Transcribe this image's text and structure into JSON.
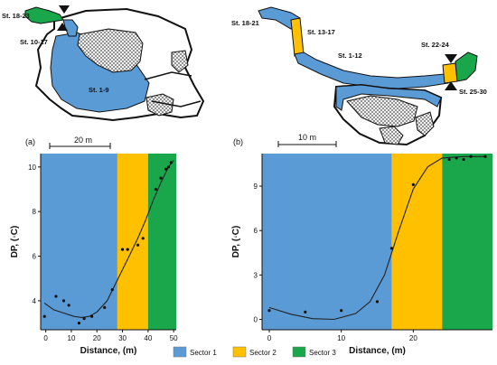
{
  "colors": {
    "sector1": "#5b9bd5",
    "sector2": "#ffc000",
    "sector3": "#1aa64a",
    "cave_outline": "#111111",
    "rock_fill": "#bfbfbf"
  },
  "map_a": {
    "panel_label": "(a)",
    "scale_label": "20 m",
    "stations": {
      "s1": "St. 18-23",
      "s2": "St. 10-17",
      "s3": "St. 1-9"
    }
  },
  "map_b": {
    "panel_label": "(b)",
    "scale_label": "10 m",
    "stations": {
      "s1": "St. 18-21",
      "s2": "St. 13-17",
      "s3": "St. 1-12",
      "s4": "St. 22-24",
      "s5": "St. 25-30"
    }
  },
  "legend": {
    "items": [
      "Sector 1",
      "Sector 2",
      "Sector 3"
    ]
  },
  "chart_data": [
    {
      "type": "scatter",
      "title": "",
      "xlabel": "Distance, (m)",
      "ylabel": "DP, (◦C)",
      "xlim": [
        -2,
        51
      ],
      "ylim": [
        2.7,
        10.6
      ],
      "xticks": [
        0,
        10,
        20,
        30,
        40,
        50
      ],
      "yticks": [
        4,
        6,
        8,
        10
      ],
      "sectors": [
        {
          "name": "Sector 1",
          "from": -2,
          "to": 28
        },
        {
          "name": "Sector 2",
          "from": 28,
          "to": 40
        },
        {
          "name": "Sector 3",
          "from": 40,
          "to": 51
        }
      ],
      "points": [
        {
          "x": -0.5,
          "y": 3.3
        },
        {
          "x": 4,
          "y": 4.2
        },
        {
          "x": 7,
          "y": 4.0
        },
        {
          "x": 9,
          "y": 3.8
        },
        {
          "x": 13,
          "y": 3.0
        },
        {
          "x": 15,
          "y": 3.2
        },
        {
          "x": 18,
          "y": 3.3
        },
        {
          "x": 23,
          "y": 3.7
        },
        {
          "x": 26,
          "y": 4.5
        },
        {
          "x": 30,
          "y": 6.3
        },
        {
          "x": 32,
          "y": 6.3
        },
        {
          "x": 36,
          "y": 6.5
        },
        {
          "x": 38,
          "y": 6.8
        },
        {
          "x": 43,
          "y": 9.0
        },
        {
          "x": 45,
          "y": 9.5
        },
        {
          "x": 47,
          "y": 9.9
        },
        {
          "x": 48,
          "y": 10.0
        },
        {
          "x": 49,
          "y": 10.2
        }
      ],
      "curve": [
        {
          "x": -0.5,
          "y": 3.9
        },
        {
          "x": 3,
          "y": 3.6
        },
        {
          "x": 7,
          "y": 3.45
        },
        {
          "x": 11,
          "y": 3.3
        },
        {
          "x": 14,
          "y": 3.25
        },
        {
          "x": 17,
          "y": 3.3
        },
        {
          "x": 20,
          "y": 3.5
        },
        {
          "x": 24,
          "y": 4.0
        },
        {
          "x": 27,
          "y": 4.7
        },
        {
          "x": 30,
          "y": 5.4
        },
        {
          "x": 33,
          "y": 6.1
        },
        {
          "x": 36,
          "y": 6.8
        },
        {
          "x": 39,
          "y": 7.6
        },
        {
          "x": 42,
          "y": 8.5
        },
        {
          "x": 45,
          "y": 9.3
        },
        {
          "x": 48,
          "y": 10.0
        },
        {
          "x": 50,
          "y": 10.3
        }
      ]
    },
    {
      "type": "scatter",
      "title": "",
      "xlabel": "Distance, (m)",
      "ylabel": "DP, (◦C)",
      "xlim": [
        -1,
        31
      ],
      "ylim": [
        -0.7,
        11.2
      ],
      "xticks": [
        0,
        10,
        20
      ],
      "yticks": [
        0,
        3,
        6,
        9
      ],
      "sectors": [
        {
          "name": "Sector 1",
          "from": -1,
          "to": 17
        },
        {
          "name": "Sector 2",
          "from": 17,
          "to": 24
        },
        {
          "name": "Sector 3",
          "from": 24,
          "to": 31
        }
      ],
      "points": [
        {
          "x": 0,
          "y": 0.6
        },
        {
          "x": 5,
          "y": 0.5
        },
        {
          "x": 10,
          "y": 0.6
        },
        {
          "x": 15,
          "y": 1.2
        },
        {
          "x": 17,
          "y": 4.8
        },
        {
          "x": 20,
          "y": 9.1
        },
        {
          "x": 25,
          "y": 10.8
        },
        {
          "x": 26,
          "y": 10.9
        },
        {
          "x": 27,
          "y": 10.8
        },
        {
          "x": 28,
          "y": 11.0
        },
        {
          "x": 30,
          "y": 11.0
        }
      ],
      "curve": [
        {
          "x": 0,
          "y": 0.8
        },
        {
          "x": 3,
          "y": 0.35
        },
        {
          "x": 6,
          "y": 0.05
        },
        {
          "x": 9,
          "y": 0.0
        },
        {
          "x": 12,
          "y": 0.4
        },
        {
          "x": 14,
          "y": 1.2
        },
        {
          "x": 16,
          "y": 3.0
        },
        {
          "x": 18,
          "y": 6.0
        },
        {
          "x": 20,
          "y": 8.8
        },
        {
          "x": 22,
          "y": 10.3
        },
        {
          "x": 24,
          "y": 10.9
        },
        {
          "x": 27,
          "y": 11.0
        },
        {
          "x": 30,
          "y": 11.0
        }
      ]
    }
  ]
}
